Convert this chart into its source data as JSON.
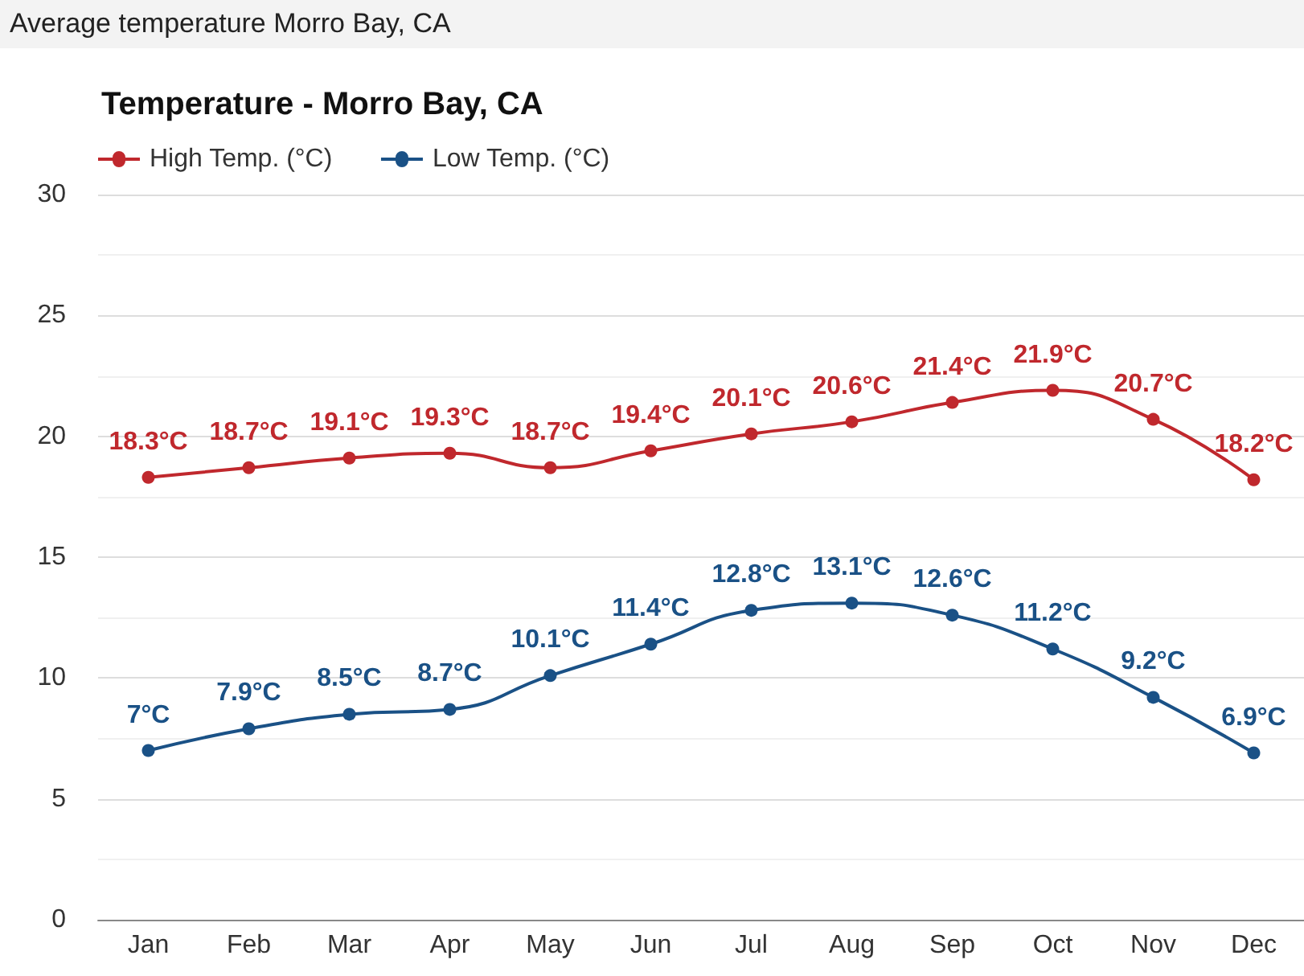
{
  "chart_data": {
    "type": "line",
    "title": "Temperature - Morro Bay, CA",
    "annotations": [
      "Average temperature Morro Bay, CA"
    ],
    "categories": [
      "Jan",
      "Feb",
      "Mar",
      "Apr",
      "May",
      "Jun",
      "Jul",
      "Aug",
      "Sep",
      "Oct",
      "Nov",
      "Dec"
    ],
    "series": [
      {
        "name": "High Temp. (°C)",
        "color": "#c0282d",
        "values": [
          18.3,
          18.7,
          19.1,
          19.3,
          18.7,
          19.4,
          20.1,
          20.6,
          21.4,
          21.9,
          20.7,
          18.2
        ],
        "value_labels": [
          "18.3°C",
          "18.7°C",
          "19.1°C",
          "19.3°C",
          "18.7°C",
          "19.4°C",
          "20.1°C",
          "20.6°C",
          "21.4°C",
          "21.9°C",
          "20.7°C",
          "18.2°C"
        ]
      },
      {
        "name": "Low Temp. (°C)",
        "color": "#1a5186",
        "values": [
          7,
          7.9,
          8.5,
          8.7,
          10.1,
          11.4,
          12.8,
          13.1,
          12.6,
          11.2,
          9.2,
          6.9
        ],
        "value_labels": [
          "7°C",
          "7.9°C",
          "8.5°C",
          "8.7°C",
          "10.1°C",
          "11.4°C",
          "12.8°C",
          "13.1°C",
          "12.6°C",
          "11.2°C",
          "9.2°C",
          "6.9°C"
        ]
      }
    ],
    "ylim": [
      0,
      30
    ],
    "yticks": [
      0,
      5,
      10,
      15,
      20,
      25,
      30
    ],
    "grid": "y",
    "legend": "top left",
    "marker": "circle",
    "line_style": "solid"
  }
}
